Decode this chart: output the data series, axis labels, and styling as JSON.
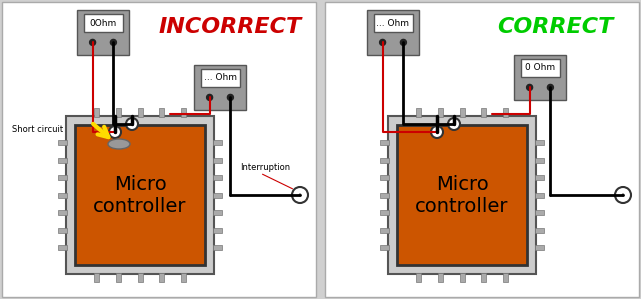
{
  "bg_color": "#ffffff",
  "left_title": "INCORRECT",
  "right_title": "CORRECT",
  "left_title_color": "#cc0000",
  "right_title_color": "#00cc00",
  "title_fontsize": 16,
  "chip_color": "#cc5500",
  "chip_text_color": "#000000",
  "meter_bg": "#888888",
  "meter_screen_bg": "#ffffff",
  "meter_screen_color": "#dddddd",
  "pin_color": "#aaaaaa",
  "pin_edge_color": "#777777",
  "wire_color": "#000000",
  "red_wire_color": "#cc0000",
  "yellow_color": "#ffdd00",
  "label_short": "Short circuit",
  "label_interrupt": "Interruption",
  "meter1_left_text": "0Ohm",
  "meter2_left_text": "... Ohm",
  "meter1_right_text": "... Ohm",
  "meter2_right_text": "0 Ohm",
  "divider_color": "#999999",
  "outer_bg": "#d0d0d0",
  "probe_circle_color": "#ffffff",
  "probe_circle_edge": "#333333",
  "blob_color": "#999999",
  "chip_border_color": "#333333",
  "chip_border_lw": 2,
  "pin_lw": 1
}
